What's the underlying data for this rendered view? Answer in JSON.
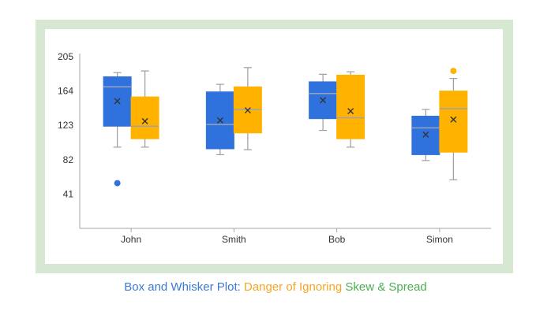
{
  "colors": {
    "series_a": "#2f72de",
    "series_b": "#ffb300",
    "frame": "#d6e7d2",
    "axis": "#a6a6a6",
    "median": "#9e9e9e",
    "mean_marker": "#333333",
    "caption_blue": "#3a7bd5",
    "caption_orange": "#f5a623",
    "caption_green": "#4caf50"
  },
  "caption": {
    "part1": "Box and Whisker Plot: ",
    "part2": "Danger of Ignoring ",
    "part3": "Skew & Spread"
  },
  "chart_data": {
    "type": "box",
    "categories": [
      "John",
      "Smith",
      "Bob",
      "Simon"
    ],
    "ylim": [
      0,
      205
    ],
    "yticks": [
      41,
      82,
      123,
      164,
      205
    ],
    "grid": false,
    "series": [
      {
        "color": "#2f72de",
        "boxes": [
          {
            "min": 97,
            "q1": 122,
            "median": 169,
            "q3": 181,
            "max": 186,
            "mean": 152,
            "outliers": [
              54
            ]
          },
          {
            "min": 88,
            "q1": 95,
            "median": 124,
            "q3": 163,
            "max": 172,
            "mean": 129,
            "outliers": []
          },
          {
            "min": 117,
            "q1": 131,
            "median": 161,
            "q3": 175,
            "max": 184,
            "mean": 153,
            "outliers": []
          },
          {
            "min": 81,
            "q1": 88,
            "median": 120,
            "q3": 134,
            "max": 142,
            "mean": 112,
            "outliers": []
          }
        ]
      },
      {
        "color": "#ffb300",
        "boxes": [
          {
            "min": 97,
            "q1": 107,
            "median": 122,
            "q3": 157,
            "max": 188,
            "mean": 128,
            "outliers": []
          },
          {
            "min": 94,
            "q1": 114,
            "median": 142,
            "q3": 169,
            "max": 192,
            "mean": 141,
            "outliers": []
          },
          {
            "min": 97,
            "q1": 107,
            "median": 132,
            "q3": 183,
            "max": 187,
            "mean": 140,
            "outliers": []
          },
          {
            "min": 58,
            "q1": 91,
            "median": 143,
            "q3": 164,
            "max": 179,
            "mean": 130,
            "outliers": [
              188
            ]
          }
        ]
      }
    ]
  }
}
